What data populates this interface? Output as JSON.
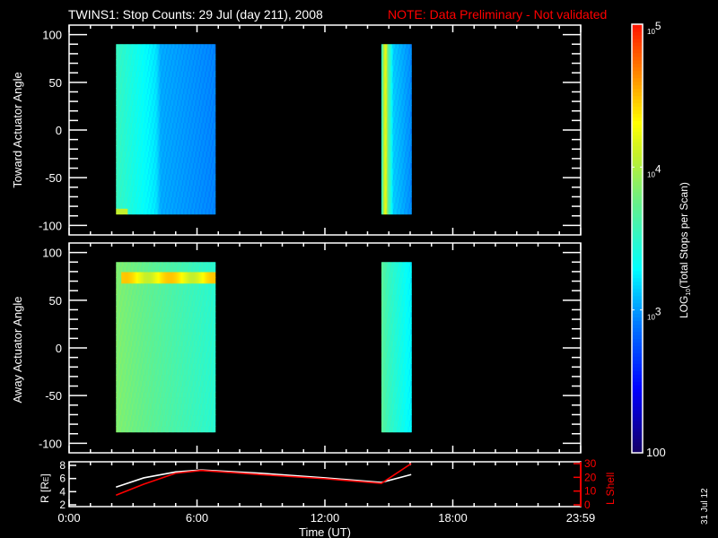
{
  "title": "TWINS1: Stop Counts: 29 Jul (day 211), 2008",
  "note": "NOTE: Data Preliminary - Not validated",
  "datestamp": "31 Jul 12",
  "colors": {
    "background": "#000000",
    "axes": "#ffffff",
    "note": "#ff0000",
    "lshell": "#ff0000",
    "radius": "#ffffff"
  },
  "chart_data": [
    {
      "type": "heatmap",
      "ylabel": "Toward Actuator Angle",
      "ylim": [
        -110,
        110
      ],
      "yticks": [
        "100",
        "50",
        "0",
        "-50",
        "-100"
      ],
      "xlim_hours": [
        0,
        24
      ],
      "blocks": [
        {
          "t": [
            2.2,
            6.85
          ],
          "angle": [
            -88,
            90
          ],
          "counts_by_time": [
            [
              2.2,
              3500
            ],
            [
              3.0,
              2500
            ],
            [
              4.1,
              1600
            ],
            [
              4.3,
              1100
            ],
            [
              6.85,
              850
            ]
          ],
          "hot_spot": {
            "t": [
              2.2,
              2.7
            ],
            "angle": [
              -88,
              -82
            ],
            "counts": 12000
          }
        },
        {
          "t": [
            14.65,
            16.05
          ],
          "angle": [
            -88,
            90
          ],
          "counts_by_time": [
            [
              14.65,
              2500
            ],
            [
              14.75,
              9000
            ],
            [
              14.85,
              20000
            ],
            [
              14.95,
              6000
            ],
            [
              15.2,
              1400
            ],
            [
              16.05,
              900
            ]
          ]
        }
      ]
    },
    {
      "type": "heatmap",
      "ylabel": "Away Actuator Angle",
      "ylim": [
        -110,
        110
      ],
      "yticks": [
        "100",
        "50",
        "0",
        "-50",
        "-100"
      ],
      "blocks": [
        {
          "t": [
            2.2,
            6.85
          ],
          "angle": [
            -88,
            90
          ],
          "counts_by_time": [
            [
              2.2,
              7000
            ],
            [
              4.0,
              5000
            ],
            [
              6.85,
              3000
            ]
          ],
          "hot_band": {
            "t": [
              2.4,
              6.85
            ],
            "angle": [
              70,
              82
            ],
            "counts": 30000
          }
        },
        {
          "t": [
            14.65,
            16.05
          ],
          "angle": [
            -88,
            90
          ],
          "counts_by_time": [
            [
              14.65,
              5000
            ],
            [
              15.0,
              3500
            ],
            [
              16.05,
              1800
            ]
          ]
        }
      ]
    },
    {
      "type": "line",
      "xlabel": "Time (UT)",
      "xticks": [
        "0:00",
        "6:00",
        "12:00",
        "18:00",
        "23:59"
      ],
      "ylabel": "R [R",
      "ylabel_sub": "E",
      "ylabel_end": "]",
      "ylim": [
        2,
        8
      ],
      "yticks": [
        "2",
        "4",
        "6",
        "8"
      ],
      "y2label": "L Shell",
      "y2lim": [
        0,
        30
      ],
      "y2ticks": [
        "0",
        "10",
        "20",
        "30"
      ],
      "series": [
        {
          "axis": "left",
          "x": [
            2.2,
            3.5,
            5.0,
            6.2,
            9.0,
            12.0,
            14.65,
            16.05
          ],
          "y": [
            4.7,
            6.1,
            7.0,
            7.3,
            6.8,
            6.1,
            5.4,
            6.6
          ]
        },
        {
          "axis": "right",
          "x": [
            2.2,
            3.5,
            5.0,
            6.2,
            9.0,
            12.0,
            14.65,
            16.05
          ],
          "y": [
            7,
            15,
            23,
            25,
            22,
            19,
            15.6,
            30
          ]
        }
      ]
    }
  ],
  "colorbar": {
    "label": "LOG",
    "label_sub": "10",
    "label_end": "(Total Stops per Scan)",
    "range": [
      100,
      100000
    ],
    "scale": "log",
    "ticks": [
      {
        "base": "10",
        "exp": "5",
        "value": 100000
      },
      {
        "base": "10",
        "exp": "4",
        "value": 10000
      },
      {
        "base": "10",
        "exp": "3",
        "value": 1000
      }
    ],
    "bottom_label": "100"
  }
}
